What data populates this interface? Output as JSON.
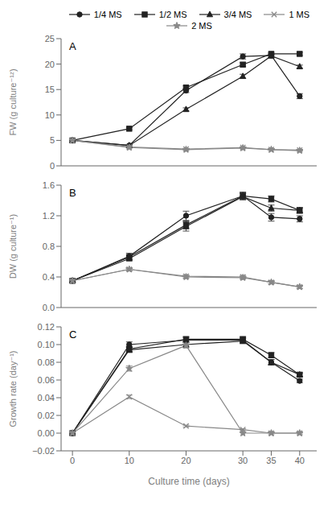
{
  "chart_data": [
    {
      "type": "line",
      "annotations": [
        "A"
      ],
      "ylabel": "FW (g culture⁻¹ᶻ)",
      "x": [
        0,
        10,
        20,
        30,
        35,
        40
      ],
      "xlim": [
        -2,
        43
      ],
      "xticks": [
        0,
        10,
        20,
        30,
        35,
        40
      ],
      "ylim": [
        0,
        25
      ],
      "yticks": [
        0,
        5,
        10,
        15,
        20,
        25
      ],
      "grid": false,
      "legend": "upper left",
      "tick_labels": "y",
      "series": [
        {
          "name": "1/4 MS",
          "color": "#222222",
          "marker": "circle",
          "line_style": "solid",
          "values": [
            5.0,
            4.0,
            14.8,
            21.5,
            21.7,
            13.7
          ],
          "errors": [
            0.0,
            0.2,
            0.4,
            0.5,
            0.4,
            0.5
          ]
        },
        {
          "name": "1/2 MS",
          "color": "#222222",
          "marker": "square",
          "line_style": "solid",
          "values": [
            5.0,
            7.3,
            15.4,
            19.9,
            22.0,
            22.0
          ],
          "errors": [
            0.0,
            0.2,
            0.3,
            0.4,
            0.3,
            0.3
          ]
        },
        {
          "name": "3/4 MS",
          "color": "#222222",
          "marker": "triangle",
          "line_style": "solid",
          "values": [
            5.0,
            4.0,
            11.1,
            17.6,
            21.6,
            19.5
          ],
          "errors": [
            0.0,
            0.2,
            0.3,
            0.4,
            0.3,
            0.3
          ]
        },
        {
          "name": "1 MS",
          "color": "#888888",
          "marker": "x",
          "line_style": "solid",
          "values": [
            5.0,
            3.7,
            3.3,
            3.6,
            3.2,
            3.1
          ],
          "errors": [
            0.0,
            0.1,
            0.1,
            0.1,
            0.1,
            0.1
          ]
        },
        {
          "name": "2 MS",
          "color": "#888888",
          "marker": "star",
          "line_style": "solid",
          "values": [
            5.0,
            3.6,
            3.2,
            3.5,
            3.2,
            3.0
          ],
          "errors": [
            0.0,
            0.1,
            0.1,
            0.1,
            0.1,
            0.1
          ]
        }
      ]
    },
    {
      "type": "line",
      "annotations": [
        "B"
      ],
      "ylabel": "DW (g culture⁻¹)",
      "x": [
        0,
        10,
        20,
        30,
        35,
        40
      ],
      "xlim": [
        -2,
        43
      ],
      "xticks": [
        0,
        10,
        20,
        30,
        35,
        40
      ],
      "ylim": [
        0.0,
        1.6
      ],
      "yticks": [
        {
          "value": 0.0,
          "label": "0.0"
        },
        0.4,
        0.8,
        1.2,
        1.6
      ],
      "grid": false,
      "tick_labels": "y",
      "series": [
        {
          "name": "1/4 MS",
          "color": "#222222",
          "marker": "circle",
          "line_style": "solid",
          "values": [
            0.35,
            0.67,
            1.2,
            1.46,
            1.18,
            1.16
          ],
          "errors": [
            0.02,
            0.04,
            0.06,
            0.05,
            0.05,
            0.04
          ]
        },
        {
          "name": "1/2 MS",
          "color": "#222222",
          "marker": "square",
          "line_style": "solid",
          "values": [
            0.35,
            0.66,
            1.08,
            1.46,
            1.42,
            1.27
          ],
          "errors": [
            0.02,
            0.03,
            0.05,
            0.04,
            0.04,
            0.04
          ]
        },
        {
          "name": "3/4 MS",
          "color": "#222222",
          "marker": "triangle",
          "line_style": "solid",
          "values": [
            0.35,
            0.64,
            1.06,
            1.45,
            1.3,
            1.27
          ],
          "errors": [
            0.02,
            0.03,
            0.06,
            0.04,
            0.04,
            0.03
          ]
        },
        {
          "name": "1 MS",
          "color": "#888888",
          "marker": "x",
          "line_style": "solid",
          "values": [
            0.35,
            0.5,
            0.41,
            0.4,
            0.33,
            0.27
          ],
          "errors": [
            0.02,
            0.02,
            0.02,
            0.02,
            0.02,
            0.02
          ]
        },
        {
          "name": "2 MS",
          "color": "#888888",
          "marker": "star",
          "line_style": "solid",
          "values": [
            0.35,
            0.5,
            0.4,
            0.39,
            0.33,
            0.27
          ],
          "errors": [
            0.02,
            0.02,
            0.02,
            0.02,
            0.02,
            0.02
          ]
        }
      ]
    },
    {
      "type": "line",
      "annotations": [
        "C"
      ],
      "ylabel": "Growth rate (day⁻¹)",
      "xlabel": "Culture time (days)",
      "x": [
        0,
        10,
        20,
        30,
        35,
        40
      ],
      "xlim": [
        -2,
        43
      ],
      "xticks": [
        0,
        10,
        20,
        30,
        35,
        40
      ],
      "ylim": [
        -0.02,
        0.12
      ],
      "yticks": [
        {
          "value": -0.02,
          "label": "−0.02"
        },
        {
          "value": 0.0,
          "label": "0.00"
        },
        0.02,
        0.04,
        0.06,
        0.08,
        {
          "value": 0.1,
          "label": "0.10"
        },
        0.12
      ],
      "grid": false,
      "series": [
        {
          "name": "1/4 MS",
          "color": "#222222",
          "marker": "circle",
          "line_style": "solid",
          "values": [
            0.0,
            0.1,
            0.105,
            0.105,
            0.08,
            0.059
          ],
          "errors": [
            0.0,
            0.003,
            0.003,
            0.003,
            0.003,
            0.002
          ]
        },
        {
          "name": "1/2 MS",
          "color": "#222222",
          "marker": "square",
          "line_style": "solid",
          "values": [
            0.0,
            0.095,
            0.106,
            0.106,
            0.088,
            0.066
          ],
          "errors": [
            0.0,
            0.003,
            0.003,
            0.003,
            0.003,
            0.002
          ]
        },
        {
          "name": "3/4 MS",
          "color": "#222222",
          "marker": "triangle",
          "line_style": "solid",
          "values": [
            0.0,
            0.094,
            0.1,
            0.104,
            0.08,
            0.066
          ],
          "errors": [
            0.0,
            0.003,
            0.003,
            0.003,
            0.003,
            0.002
          ]
        },
        {
          "name": "1 MS",
          "color": "#888888",
          "marker": "x",
          "line_style": "solid",
          "values": [
            0.0,
            0.041,
            0.008,
            0.004,
            0.0,
            0.0
          ],
          "errors": [
            0.0,
            0.002,
            0.001,
            0.001,
            0.001,
            0.001
          ]
        },
        {
          "name": "2 MS",
          "color": "#888888",
          "marker": "star",
          "line_style": "solid",
          "values": [
            0.0,
            0.073,
            0.099,
            0.0,
            0.0,
            0.0
          ],
          "errors": [
            0.0,
            0.003,
            0.003,
            0.0,
            0.0,
            0.0
          ]
        }
      ]
    }
  ]
}
